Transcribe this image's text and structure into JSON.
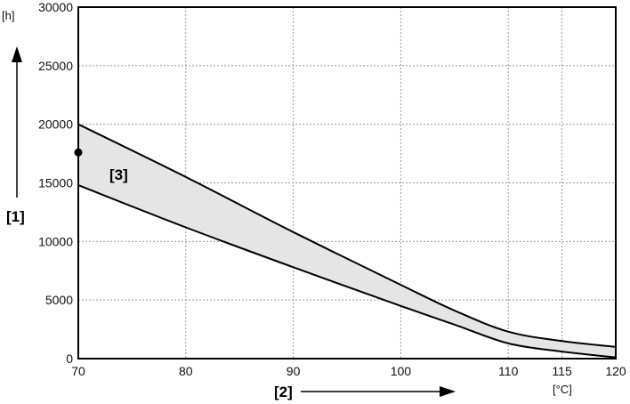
{
  "chart_data": {
    "type": "area",
    "xlim": [
      70,
      120
    ],
    "ylim": [
      0,
      30000
    ],
    "x_ticks": [
      70,
      80,
      90,
      100,
      110,
      115,
      120
    ],
    "y_ticks": [
      0,
      5000,
      10000,
      15000,
      20000,
      25000,
      30000
    ],
    "grid": true,
    "ylabel": "[1]",
    "xlabel": "[2]",
    "y_unit": "[h]",
    "x_unit": "[°C]",
    "band_label": "[3]",
    "upper": {
      "x": [
        70,
        80,
        90,
        100,
        105,
        110,
        115,
        120
      ],
      "y": [
        20000,
        15500,
        10800,
        6300,
        4100,
        2300,
        1500,
        1000
      ]
    },
    "lower": {
      "x": [
        70,
        80,
        90,
        100,
        105,
        110,
        115,
        120
      ],
      "y": [
        14800,
        11200,
        7800,
        4500,
        2900,
        1300,
        600,
        100
      ]
    },
    "point": {
      "x": 70,
      "y": 17600
    },
    "colors": {
      "band_fill": "#e5e5e5",
      "line": "#000000"
    }
  }
}
